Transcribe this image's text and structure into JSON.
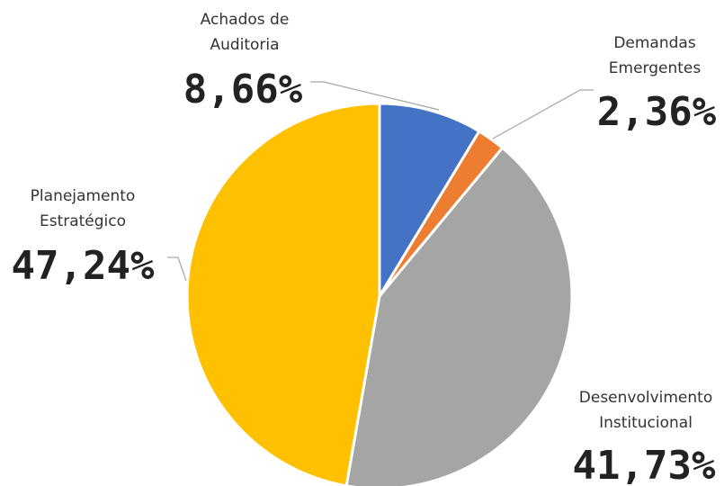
{
  "chart_data": {
    "type": "pie",
    "categories": [
      "Achados de Auditoria",
      "Demandas Emergentes",
      "Desenvolvimento Institucional",
      "Planejamento Estratégico"
    ],
    "values": [
      8.66,
      2.36,
      41.73,
      47.24
    ],
    "value_labels": [
      "8,66%",
      "2,36%",
      "41,73%",
      "47,24%"
    ],
    "colors": [
      "#4472c4",
      "#ed7d31",
      "#a5a5a5",
      "#ffc000"
    ]
  }
}
